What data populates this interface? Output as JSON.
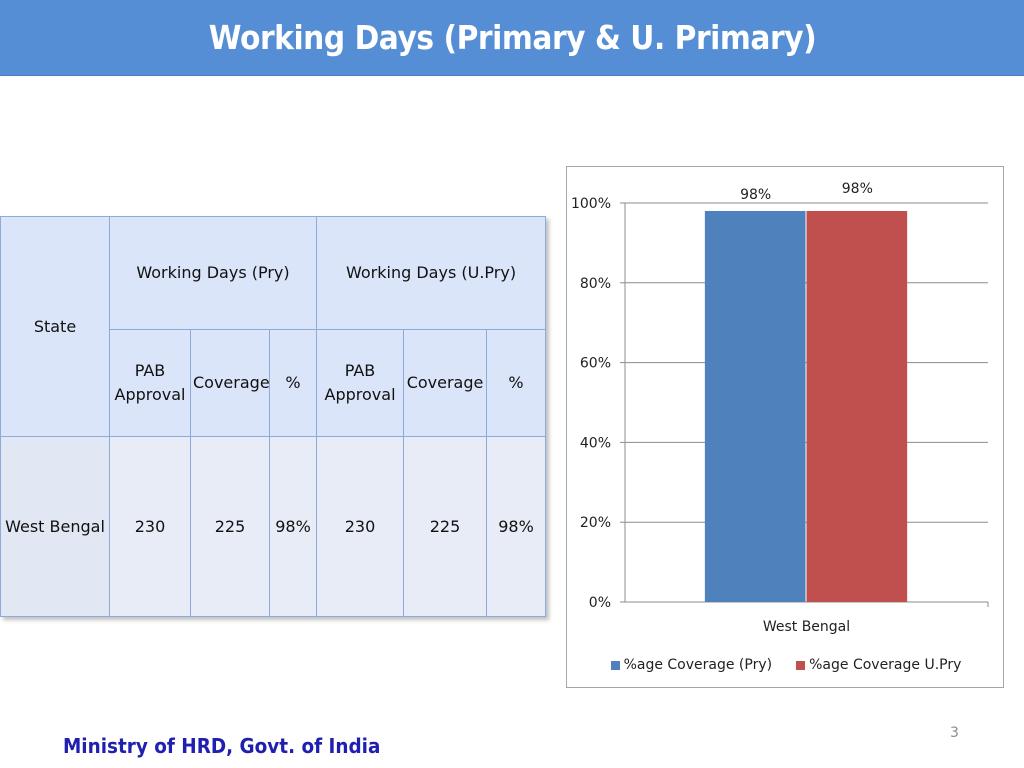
{
  "header": {
    "title": "Working Days (Primary & U. Primary)"
  },
  "table": {
    "state_label": "State",
    "group_pry": "Working Days (Pry)",
    "group_upry": "Working Days (U.Pry)",
    "sub_pab_line1": "PAB",
    "sub_pab_line2": "Approval",
    "sub_coverage": "Coverage",
    "sub_pct": "%",
    "row": {
      "state": "West Bengal",
      "pry_pab": "230",
      "pry_coverage": "225",
      "pry_pct": "98%",
      "upry_pab": "230",
      "upry_coverage": "225",
      "upry_pct": "98%"
    }
  },
  "chart_data": {
    "type": "bar",
    "categories": [
      "West Bengal"
    ],
    "series": [
      {
        "name": "%age Coverage (Pry)",
        "values": [
          98
        ],
        "color": "#4f81bd",
        "label": "98%"
      },
      {
        "name": "%age Coverage U.Pry",
        "values": [
          98
        ],
        "color": "#c0504d",
        "label": "98%"
      }
    ],
    "yticks": [
      {
        "value": 0,
        "label": "0%"
      },
      {
        "value": 20,
        "label": "20%"
      },
      {
        "value": 40,
        "label": "40%"
      },
      {
        "value": 60,
        "label": "60%"
      },
      {
        "value": 80,
        "label": "80%"
      },
      {
        "value": 100,
        "label": "100%"
      }
    ],
    "ylim": [
      0,
      100
    ],
    "grid": true,
    "legend": "bottom"
  },
  "footer": {
    "text": "Ministry of HRD, Govt. of India",
    "page": "3"
  }
}
